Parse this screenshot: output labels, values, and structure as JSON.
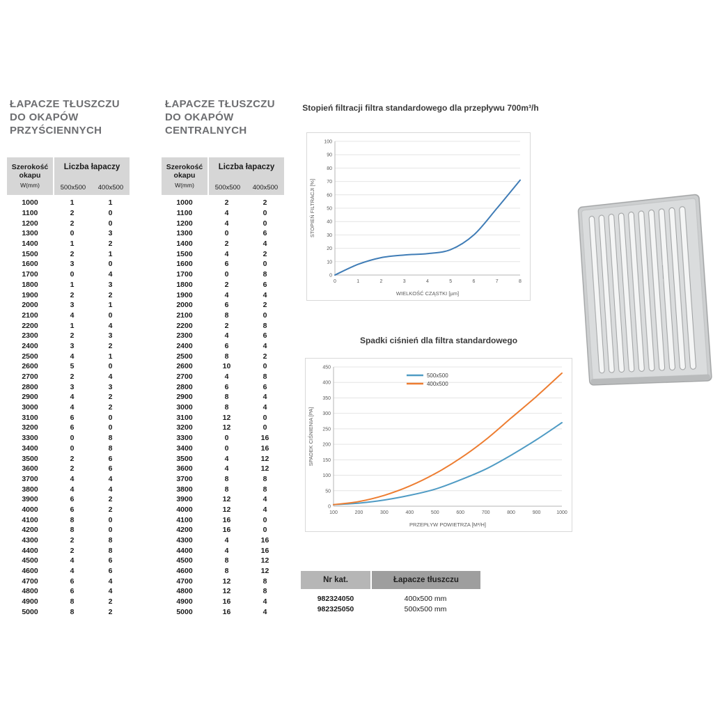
{
  "tables": [
    {
      "title_lines": [
        "ŁAPACZE TŁUSZCZU",
        "DO OKAPÓW",
        "PRZYŚCIENNYCH"
      ],
      "header": {
        "col1_line1": "Szerokość",
        "col1_line2": "okapu",
        "col1_line3": "W(mm)",
        "group": "Liczba łapaczy",
        "col2": "500x500",
        "col3": "400x500"
      },
      "rows": [
        [
          1000,
          1,
          1
        ],
        [
          1100,
          2,
          0
        ],
        [
          1200,
          2,
          0
        ],
        [
          1300,
          0,
          3
        ],
        [
          1400,
          1,
          2
        ],
        [
          1500,
          2,
          1
        ],
        [
          1600,
          3,
          0
        ],
        [
          1700,
          0,
          4
        ],
        [
          1800,
          1,
          3
        ],
        [
          1900,
          2,
          2
        ],
        [
          2000,
          3,
          1
        ],
        [
          2100,
          4,
          0
        ],
        [
          2200,
          1,
          4
        ],
        [
          2300,
          2,
          3
        ],
        [
          2400,
          3,
          2
        ],
        [
          2500,
          4,
          1
        ],
        [
          2600,
          5,
          0
        ],
        [
          2700,
          2,
          4
        ],
        [
          2800,
          3,
          3
        ],
        [
          2900,
          4,
          2
        ],
        [
          3000,
          4,
          2
        ],
        [
          3100,
          6,
          0
        ],
        [
          3200,
          6,
          0
        ],
        [
          3300,
          0,
          8
        ],
        [
          3400,
          0,
          8
        ],
        [
          3500,
          2,
          6
        ],
        [
          3600,
          2,
          6
        ],
        [
          3700,
          4,
          4
        ],
        [
          3800,
          4,
          4
        ],
        [
          3900,
          6,
          2
        ],
        [
          4000,
          6,
          2
        ],
        [
          4100,
          8,
          0
        ],
        [
          4200,
          8,
          0
        ],
        [
          4300,
          2,
          8
        ],
        [
          4400,
          2,
          8
        ],
        [
          4500,
          4,
          6
        ],
        [
          4600,
          4,
          6
        ],
        [
          4700,
          6,
          4
        ],
        [
          4800,
          6,
          4
        ],
        [
          4900,
          8,
          2
        ],
        [
          5000,
          8,
          2
        ]
      ]
    },
    {
      "title_lines": [
        "ŁAPACZE TŁUSZCZU",
        "DO OKAPÓW",
        "CENTRALNYCH"
      ],
      "header": {
        "col1_line1": "Szerokość",
        "col1_line2": "okapu",
        "col1_line3": "W(mm)",
        "group": "Liczba łapaczy",
        "col2": "500x500",
        "col3": "400x500"
      },
      "rows": [
        [
          1000,
          2,
          2
        ],
        [
          1100,
          4,
          0
        ],
        [
          1200,
          4,
          0
        ],
        [
          1300,
          0,
          6
        ],
        [
          1400,
          2,
          4
        ],
        [
          1500,
          4,
          2
        ],
        [
          1600,
          6,
          0
        ],
        [
          1700,
          0,
          8
        ],
        [
          1800,
          2,
          6
        ],
        [
          1900,
          4,
          4
        ],
        [
          2000,
          6,
          2
        ],
        [
          2100,
          8,
          0
        ],
        [
          2200,
          2,
          8
        ],
        [
          2300,
          4,
          6
        ],
        [
          2400,
          6,
          4
        ],
        [
          2500,
          8,
          2
        ],
        [
          2600,
          10,
          0
        ],
        [
          2700,
          4,
          8
        ],
        [
          2800,
          6,
          6
        ],
        [
          2900,
          8,
          4
        ],
        [
          3000,
          8,
          4
        ],
        [
          3100,
          12,
          0
        ],
        [
          3200,
          12,
          0
        ],
        [
          3300,
          0,
          16
        ],
        [
          3400,
          0,
          16
        ],
        [
          3500,
          4,
          12
        ],
        [
          3600,
          4,
          12
        ],
        [
          3700,
          8,
          8
        ],
        [
          3800,
          8,
          8
        ],
        [
          3900,
          12,
          4
        ],
        [
          4000,
          12,
          4
        ],
        [
          4100,
          16,
          0
        ],
        [
          4200,
          16,
          0
        ],
        [
          4300,
          4,
          16
        ],
        [
          4400,
          4,
          16
        ],
        [
          4500,
          8,
          12
        ],
        [
          4600,
          8,
          12
        ],
        [
          4700,
          12,
          8
        ],
        [
          4800,
          12,
          8
        ],
        [
          4900,
          16,
          4
        ],
        [
          5000,
          16,
          4
        ]
      ]
    }
  ],
  "chart_data": [
    {
      "type": "line",
      "title": "Stopień filtracji filtra standardowego dla przepływu 700m³/h",
      "xlabel": "WIELKOŚĆ CZĄSTKI [µm]",
      "ylabel": "STOPIEŃ FILTRACJI [%]",
      "x": [
        0,
        1,
        2,
        3,
        4,
        5,
        6,
        7,
        8
      ],
      "series": [
        {
          "name": "stopień filtracji",
          "color": "#3f7cb6",
          "values": [
            0,
            8,
            13,
            15,
            16,
            19,
            30,
            50,
            71
          ]
        }
      ],
      "xlim": [
        0,
        8
      ],
      "ylim": [
        0,
        100
      ],
      "xtick": 1,
      "ytick": 10,
      "grid": true,
      "legend": false
    },
    {
      "type": "line",
      "title": "Spadki ciśnień dla filtra standardowego",
      "xlabel": "PRZEPŁYW POWIETRZA [M³/H]",
      "ylabel": "SPADEK CIŚNIENIA [PA]",
      "x": [
        100,
        200,
        300,
        400,
        500,
        600,
        700,
        800,
        900,
        1000
      ],
      "series": [
        {
          "name": "500x500",
          "color": "#4f9bc4",
          "values": [
            5,
            10,
            20,
            35,
            55,
            85,
            120,
            165,
            215,
            270
          ]
        },
        {
          "name": "400x500",
          "color": "#ed7d31",
          "values": [
            5,
            15,
            35,
            65,
            105,
            155,
            215,
            285,
            355,
            430
          ]
        }
      ],
      "xlim": [
        100,
        1000
      ],
      "ylim": [
        0,
        450
      ],
      "xtick": 100,
      "ytick": 50,
      "grid": true,
      "legend": true,
      "legend_position": "top-center-inside"
    }
  ],
  "catalog": {
    "col1": "Nr kat.",
    "col2": "Łapacze tłuszczu",
    "rows": [
      [
        "982324050",
        "400x500 mm"
      ],
      [
        "982325050",
        "500x500 mm"
      ]
    ]
  },
  "product_image": {
    "name": "grease-filter-grille"
  },
  "colors": {
    "title_gray": "#6d6e71",
    "table_header_bg": "#d6d6d6",
    "catalog_header_bg_left": "#b6b6b6",
    "catalog_header_bg_right": "#9e9e9e",
    "chart1_line": "#3f7cb6",
    "chart2_blue": "#4f9bc4",
    "chart2_orange": "#ed7d31"
  }
}
